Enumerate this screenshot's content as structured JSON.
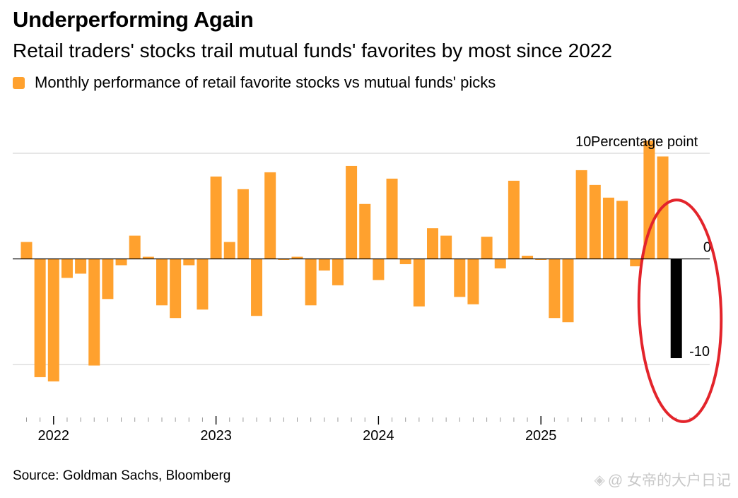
{
  "title": "Underperforming Again",
  "subtitle": "Retail traders' stocks trail mutual funds' favorites by most since 2022",
  "source": "Source: Goldman Sachs, Bloomberg",
  "watermark": {
    "icon": "diamond-logo-icon",
    "text": "@ 女帝的大户日记"
  },
  "colors": {
    "bar": "#FFA12E",
    "highlight_bar": "#000000",
    "annotation": "#E3242B",
    "grid": "#CCCCCC",
    "zero_line": "#000000"
  },
  "chart_data": {
    "type": "bar",
    "title": "Underperforming Again",
    "subtitle": "Retail traders' stocks trail mutual funds' favorites by most since 2022",
    "legend": [
      {
        "label": "Monthly performance of retail favorite stocks vs mutual funds' picks",
        "color": "#FFA12E"
      }
    ],
    "ylabel": "Percentage point",
    "ylim": [
      -15,
      12
    ],
    "y_ticks": [
      {
        "value": 10,
        "label": "10"
      },
      {
        "value": 0,
        "label": "0"
      },
      {
        "value": -10,
        "label": "-10"
      }
    ],
    "x_ticks": [
      {
        "index": 2,
        "label": "2022"
      },
      {
        "index": 14,
        "label": "2023"
      },
      {
        "index": 26,
        "label": "2024"
      },
      {
        "index": 38,
        "label": "2025"
      }
    ],
    "months": [
      "Nov 2021",
      "Dec 2021",
      "Jan 2022",
      "Feb 2022",
      "Mar 2022",
      "Apr 2022",
      "May 2022",
      "Jun 2022",
      "Jul 2022",
      "Aug 2022",
      "Sep 2022",
      "Oct 2022",
      "Nov 2022",
      "Dec 2022",
      "Jan 2023",
      "Feb 2023",
      "Mar 2023",
      "Apr 2023",
      "May 2023",
      "Jun 2023",
      "Jul 2023",
      "Aug 2023",
      "Sep 2023",
      "Oct 2023",
      "Nov 2023",
      "Dec 2023",
      "Jan 2024",
      "Feb 2024",
      "Mar 2024",
      "Apr 2024",
      "May 2024",
      "Jun 2024",
      "Jul 2024",
      "Aug 2024",
      "Sep 2024",
      "Oct 2024",
      "Nov 2024",
      "Dec 2024",
      "Jan 2025",
      "Feb 2025",
      "Mar 2025",
      "Apr 2025",
      "May 2025",
      "Jun 2025",
      "Jul 2025",
      "Aug 2025",
      "Sep 2025",
      "Oct 2025",
      "Nov 2025"
    ],
    "values": [
      1.6,
      -11.2,
      -11.6,
      -1.8,
      -1.4,
      -10.1,
      -3.8,
      -0.6,
      2.2,
      0.2,
      -4.4,
      -5.6,
      -0.6,
      -4.8,
      7.8,
      1.6,
      6.6,
      -5.4,
      8.2,
      -0.1,
      0.2,
      -4.4,
      -1.1,
      -2.5,
      8.8,
      5.2,
      -2.0,
      7.6,
      -0.5,
      -4.5,
      2.9,
      2.2,
      -3.6,
      -4.3,
      2.1,
      -0.9,
      7.4,
      0.3,
      -0.1,
      -5.6,
      -6.0,
      8.4,
      7.0,
      5.8,
      5.5,
      -0.7,
      11.2,
      9.7,
      -9.4
    ],
    "highlight_index": 48,
    "annotation": "ellipse around latest bars"
  }
}
